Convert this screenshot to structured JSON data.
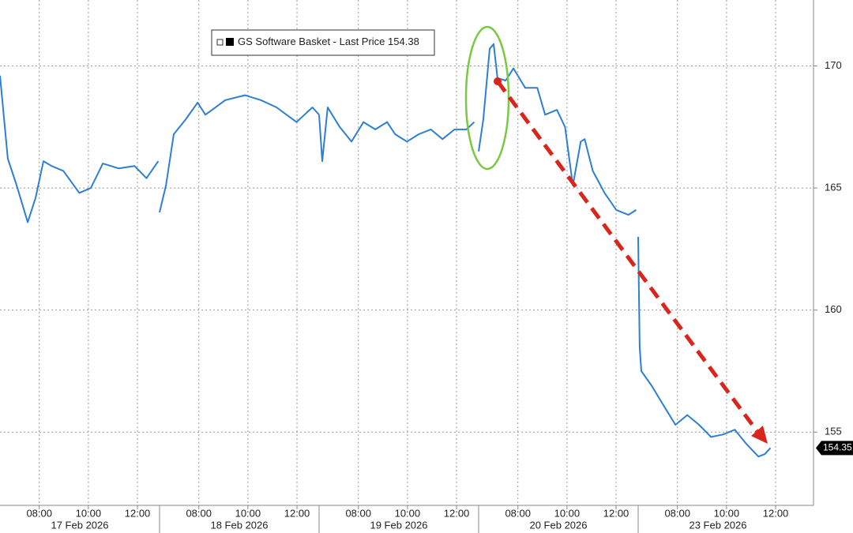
{
  "chart_data": {
    "type": "line",
    "legend": "GS Software Basket - Last Price",
    "last_price": 154.38,
    "last_value": 154.35,
    "color": "#2f7fd0",
    "ylim": [
      152,
      172.7
    ],
    "yticks": [
      155,
      160,
      165,
      170
    ],
    "xlim": [
      6.4,
      12.9
    ],
    "xticks": [
      {
        "value": 8,
        "label": "08:00"
      },
      {
        "value": 10,
        "label": "10:00"
      },
      {
        "value": 12,
        "label": "12:00"
      }
    ],
    "grid": true,
    "panels": [
      {
        "date": "17 Feb 2026",
        "x": [
          6.4,
          6.72,
          7.05,
          7.53,
          7.85,
          8.17,
          8.5,
          8.98,
          9.63,
          10.1,
          10.59,
          11.24,
          11.88,
          12.37,
          12.85
        ],
        "values": [
          169.6,
          166.2,
          165.2,
          163.6,
          164.6,
          166.1,
          165.9,
          165.7,
          164.8,
          165.0,
          166.0,
          165.8,
          165.9,
          165.4,
          166.1
        ]
      },
      {
        "date": "18 Feb 2026",
        "x": [
          6.4,
          6.66,
          6.98,
          7.46,
          7.95,
          8.27,
          9.08,
          9.88,
          10.53,
          11.17,
          11.98,
          12.63,
          12.9
        ],
        "values": [
          164.0,
          165.1,
          167.2,
          167.8,
          168.5,
          168.0,
          168.6,
          168.8,
          168.6,
          168.3,
          167.7,
          168.3,
          168.0
        ]
      },
      {
        "date": "19 Feb 2026",
        "x": [
          6.4,
          6.53,
          6.75,
          7.24,
          7.72,
          8.21,
          8.69,
          9.17,
          9.5,
          9.98,
          10.46,
          10.95,
          11.43,
          11.92,
          12.4,
          12.72
        ],
        "values": [
          168.0,
          166.1,
          168.3,
          167.5,
          166.9,
          167.7,
          167.4,
          167.7,
          167.2,
          166.9,
          167.2,
          167.4,
          167.0,
          167.4,
          167.4,
          167.7
        ]
      },
      {
        "date": "20 Feb 2026",
        "x": [
          6.4,
          6.59,
          6.85,
          7.01,
          7.17,
          7.5,
          7.82,
          8.3,
          8.79,
          9.11,
          9.59,
          9.92,
          10.24,
          10.56,
          10.72,
          11.05,
          11.53,
          12.01,
          12.5,
          12.82
        ],
        "values": [
          166.5,
          167.8,
          170.7,
          170.9,
          169.5,
          169.4,
          169.9,
          169.1,
          169.1,
          168.0,
          168.2,
          167.5,
          165.1,
          166.9,
          167.0,
          165.7,
          164.8,
          164.1,
          163.9,
          164.1
        ]
      },
      {
        "date": "23 Feb 2026",
        "x": [
          6.4,
          6.46,
          6.53,
          6.95,
          7.43,
          7.92,
          8.4,
          8.88,
          9.37,
          9.85,
          10.34,
          10.82,
          11.3,
          11.56,
          11.79
        ],
        "values": [
          163.0,
          158.5,
          157.5,
          156.9,
          156.1,
          155.3,
          155.7,
          155.3,
          154.8,
          154.9,
          155.1,
          154.5,
          154.0,
          154.1,
          154.35
        ]
      }
    ]
  }
}
